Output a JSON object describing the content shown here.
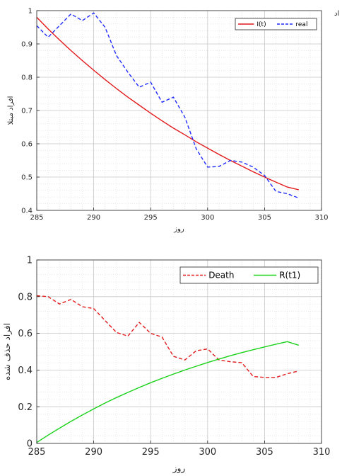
{
  "corner_text": "اد",
  "colors": {
    "model1": "#e31a1c",
    "real": "#1f2bff",
    "death": "#e31a1c",
    "model2": "#19d119",
    "grid_minor": "#dcdcdc",
    "grid_major": "#c8c8c8",
    "axes": "#262626"
  },
  "chart_data": [
    {
      "type": "line",
      "title": "",
      "xlabel": "روز",
      "ylabel": "افراد مبتلا",
      "xlim": [
        285,
        310
      ],
      "ylim": [
        0.4,
        1.0
      ],
      "xticks": [
        285,
        290,
        295,
        300,
        305,
        310
      ],
      "yticks": [
        0.4,
        0.5,
        0.6,
        0.7,
        0.8,
        0.9,
        1.0
      ],
      "ytick_labels": [
        "0.4",
        "0.5",
        "0.6",
        "0.7",
        "0.8",
        "0.9",
        "1"
      ],
      "grid": true,
      "legend_position": "top-right",
      "series": [
        {
          "name": "I(t)",
          "style": "solid",
          "color_key": "model1",
          "x": [
            285,
            286,
            287,
            288,
            289,
            290,
            291,
            292,
            293,
            294,
            295,
            296,
            297,
            298,
            299,
            300,
            301,
            302,
            303,
            304,
            305,
            306,
            307,
            308
          ],
          "y": [
            0.98,
            0.945,
            0.912,
            0.88,
            0.85,
            0.821,
            0.793,
            0.766,
            0.74,
            0.716,
            0.692,
            0.669,
            0.647,
            0.627,
            0.606,
            0.587,
            0.568,
            0.55,
            0.533,
            0.516,
            0.5,
            0.485,
            0.47,
            0.462
          ]
        },
        {
          "name": "real",
          "style": "dashed",
          "color_key": "real",
          "x": [
            285,
            286,
            287,
            288,
            289,
            290,
            291,
            292,
            293,
            294,
            295,
            296,
            297,
            298,
            299,
            300,
            301,
            302,
            303,
            304,
            305,
            306,
            307,
            308
          ],
          "y": [
            0.955,
            0.92,
            0.955,
            0.99,
            0.97,
            0.993,
            0.95,
            0.865,
            0.815,
            0.77,
            0.785,
            0.725,
            0.74,
            0.68,
            0.585,
            0.53,
            0.532,
            0.55,
            0.545,
            0.53,
            0.505,
            0.457,
            0.45,
            0.437
          ]
        }
      ]
    },
    {
      "type": "line",
      "title": "",
      "xlabel": "روز",
      "ylabel": "افراد حذف شده",
      "xlim": [
        285,
        310
      ],
      "ylim": [
        0,
        1
      ],
      "xticks": [
        285,
        290,
        295,
        300,
        305,
        310
      ],
      "yticks": [
        0,
        0.2,
        0.4,
        0.6,
        0.8,
        1
      ],
      "ytick_labels": [
        "0",
        "0.2",
        "0.4",
        "0.6",
        "0.8",
        "1"
      ],
      "grid": true,
      "legend_position": "top-right",
      "series": [
        {
          "name": "Death",
          "style": "dashed",
          "color_key": "death",
          "x": [
            285,
            286,
            287,
            288,
            289,
            290,
            291,
            292,
            293,
            294,
            295,
            296,
            297,
            298,
            299,
            300,
            301,
            302,
            303,
            304,
            305,
            306,
            307,
            308
          ],
          "y": [
            0.805,
            0.8,
            0.76,
            0.785,
            0.745,
            0.735,
            0.67,
            0.605,
            0.585,
            0.66,
            0.6,
            0.58,
            0.475,
            0.455,
            0.505,
            0.515,
            0.455,
            0.445,
            0.44,
            0.365,
            0.36,
            0.36,
            0.38,
            0.395
          ]
        },
        {
          "name": "R(t1)",
          "style": "solid",
          "color_key": "model2",
          "x": [
            285,
            286,
            287,
            288,
            289,
            290,
            291,
            292,
            293,
            294,
            295,
            296,
            297,
            298,
            299,
            300,
            301,
            302,
            303,
            304,
            305,
            306,
            307,
            308
          ],
          "y": [
            0.005,
            0.045,
            0.083,
            0.12,
            0.155,
            0.188,
            0.22,
            0.25,
            0.278,
            0.305,
            0.331,
            0.355,
            0.378,
            0.4,
            0.421,
            0.441,
            0.46,
            0.478,
            0.495,
            0.511,
            0.526,
            0.541,
            0.555,
            0.535
          ]
        }
      ]
    }
  ]
}
